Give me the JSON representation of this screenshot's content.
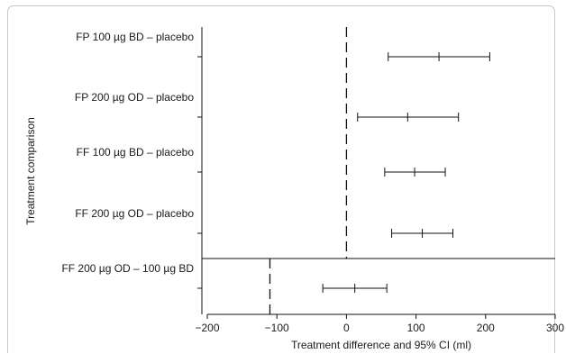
{
  "chart_data": {
    "type": "forest",
    "ylabel": "Treatment comparison",
    "xlabel": "Treatment difference and 95% CI (ml)",
    "xlim": [
      -200,
      300
    ],
    "xticks": [
      -200,
      -100,
      0,
      100,
      200,
      300
    ],
    "xtick_labels": [
      "−200",
      "−100",
      "0",
      "100",
      "200",
      "300"
    ],
    "panels": [
      {
        "name": "vs-placebo",
        "reference_line": 0,
        "rows": [
          {
            "label": "FP 100 µg BD – placebo",
            "estimate": 133,
            "lower": 60,
            "upper": 206
          },
          {
            "label": "FP 200 µg OD – placebo",
            "estimate": 88,
            "lower": 16,
            "upper": 161
          },
          {
            "label": "FF 100 µg BD – placebo",
            "estimate": 98,
            "lower": 55,
            "upper": 142
          },
          {
            "label": "FF 200 µg OD – placebo",
            "estimate": 109,
            "lower": 65,
            "upper": 153
          }
        ]
      },
      {
        "name": "ff-dose-comparison",
        "reference_line": -110,
        "rows": [
          {
            "label": "FF 200 µg OD – 100 µg BD",
            "estimate": 12,
            "lower": -34,
            "upper": 58
          }
        ]
      }
    ]
  }
}
